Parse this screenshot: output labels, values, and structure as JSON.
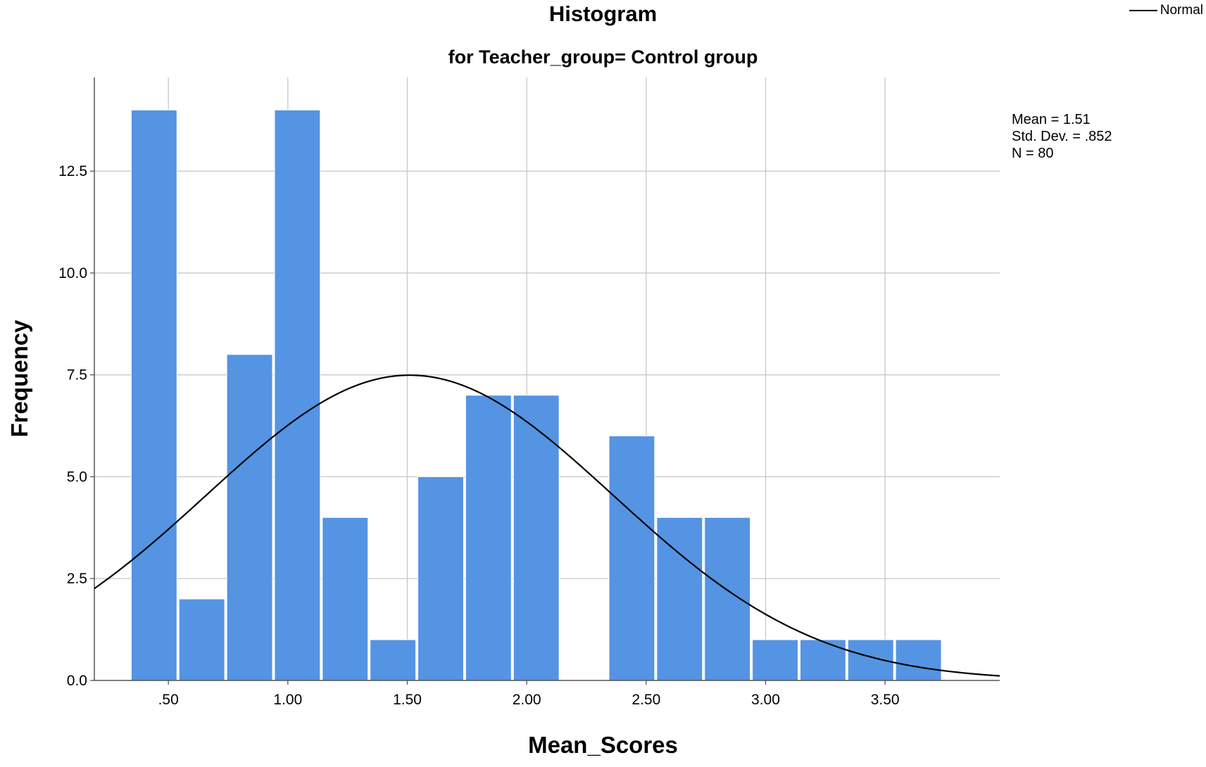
{
  "chart_data": {
    "type": "bar",
    "title": "Histogram",
    "subtitle": "for Teacher_group= Control group",
    "xlabel": "Mean_Scores",
    "ylabel": "Frequency",
    "bin_width": 0.2,
    "bin_centers": [
      0.44,
      0.64,
      0.84,
      1.04,
      1.24,
      1.44,
      1.64,
      1.84,
      2.04,
      2.24,
      2.44,
      2.64,
      2.84,
      3.04,
      3.24,
      3.44,
      3.64
    ],
    "values": [
      14,
      2,
      8,
      14,
      4,
      1,
      5,
      7,
      7,
      0,
      6,
      4,
      4,
      1,
      1,
      1,
      1
    ],
    "xlim": [
      0.19,
      3.98
    ],
    "ylim": [
      0,
      14.8
    ],
    "x_ticks": [
      0.5,
      1.0,
      1.5,
      2.0,
      2.5,
      3.0,
      3.5
    ],
    "x_tick_labels": [
      ".50",
      "1.00",
      "1.50",
      "2.00",
      "2.50",
      "3.00",
      "3.50"
    ],
    "y_ticks": [
      0,
      2.5,
      5,
      7.5,
      10,
      12.5
    ],
    "y_tick_labels": [
      "0.0",
      "2.5",
      "5.0",
      "7.5",
      "10.0",
      "12.5"
    ],
    "grid": true,
    "bar_color": "#5494e3",
    "normal_curve": {
      "name": "Normal",
      "mean": 1.51,
      "sd": 0.852,
      "n": 80,
      "color": "#000000"
    },
    "legend": {
      "position": "top-right",
      "entries": [
        "Normal"
      ]
    },
    "stats_text": [
      "Mean = 1.51",
      "Std. Dev. = .852",
      "N = 80"
    ]
  }
}
